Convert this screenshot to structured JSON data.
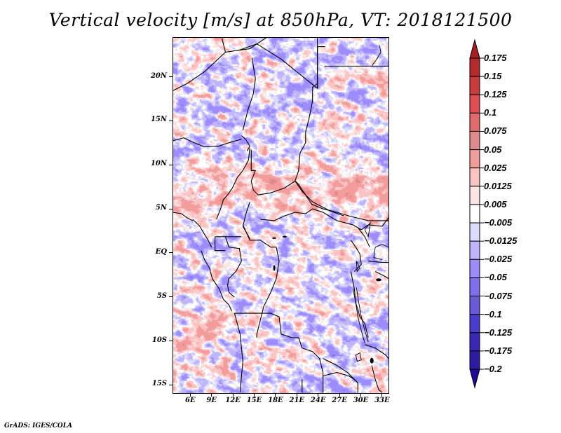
{
  "chart_data": {
    "type": "heatmap",
    "title": "Vertical velocity [m/s] at 850hPa, VT: 2018121500",
    "variable": "Vertical velocity",
    "units": "m/s",
    "level": "850hPa",
    "valid_time": "2018121500",
    "xlabel": "",
    "ylabel": "",
    "lon_range": [
      3.5,
      34
    ],
    "lat_range": [
      -16,
      24.5
    ],
    "x_ticks": [
      {
        "value": 6,
        "label": "6E"
      },
      {
        "value": 9,
        "label": "9E"
      },
      {
        "value": 12,
        "label": "12E"
      },
      {
        "value": 15,
        "label": "15E"
      },
      {
        "value": 18,
        "label": "18E"
      },
      {
        "value": 21,
        "label": "21E"
      },
      {
        "value": 24,
        "label": "24E"
      },
      {
        "value": 27,
        "label": "27E"
      },
      {
        "value": 30,
        "label": "30E"
      },
      {
        "value": 33,
        "label": "33E"
      }
    ],
    "y_ticks": [
      {
        "value": 20,
        "label": "20N"
      },
      {
        "value": 15,
        "label": "15N"
      },
      {
        "value": 10,
        "label": "10N"
      },
      {
        "value": 5,
        "label": "5N"
      },
      {
        "value": 0,
        "label": "EQ"
      },
      {
        "value": -5,
        "label": "5S"
      },
      {
        "value": -10,
        "label": "10S"
      },
      {
        "value": -15,
        "label": "15S"
      }
    ],
    "colorbar": {
      "orientation": "vertical",
      "placement": "right",
      "extend": "both",
      "levels": [
        0.175,
        0.15,
        0.125,
        0.1,
        0.075,
        0.05,
        0.025,
        0.0125,
        0.005,
        -0.005,
        -0.0125,
        -0.025,
        -0.05,
        -0.075,
        -0.1,
        -0.125,
        -0.175,
        -0.2
      ],
      "labels": [
        "0.175",
        "0.15",
        "0.125",
        "0.1",
        "0.075",
        "0.05",
        "0.025",
        "0.0125",
        "0.005",
        "−0.005",
        "−0.0125",
        "−0.025",
        "−0.05",
        "−0.075",
        "−0.1",
        "−0.125",
        "−0.175",
        "−0.2"
      ],
      "colors": [
        "#a61e22",
        "#b52a2d",
        "#c93c3c",
        "#e04e52",
        "#e06a6c",
        "#df8a8d",
        "#f39c9c",
        "#fbc4c4",
        "#fde4e4",
        "#ffffff",
        "#dcdcfc",
        "#c0b4fc",
        "#9c8cfc",
        "#7e70ec",
        "#6a5ad8",
        "#4a3ccc",
        "#3a28b4",
        "#2c1ca4",
        "#1f0a9a"
      ]
    },
    "pattern_description": "Noisy mesoscale field; positive (red) bands across 5N-10N from 6E-30E, mixed red/blue elsewhere; country borders of Central Africa overlaid."
  },
  "footer": {
    "credit": "GrADS: IGES/COLA"
  }
}
